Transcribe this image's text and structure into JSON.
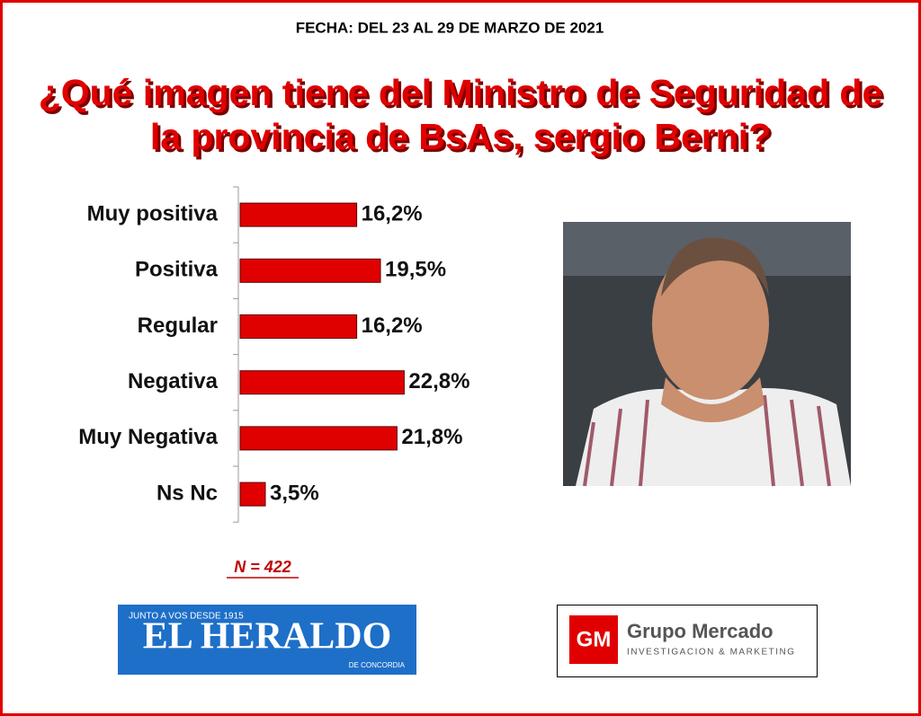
{
  "header": {
    "date": "FECHA: DEL 23 AL 29 DE MARZO DE 2021"
  },
  "chart_data": {
    "type": "bar",
    "orientation": "horizontal",
    "title": [
      "¿Qué imagen tiene del Ministro de Seguridad de",
      "la provincia de BsAs, sergio Berni?"
    ],
    "categories": [
      "Muy positiva",
      "Positiva",
      "Regular",
      "Negativa",
      "Muy Negativa",
      "Ns Nc"
    ],
    "values": [
      16.2,
      19.5,
      16.2,
      22.8,
      21.8,
      3.5
    ],
    "value_labels": [
      "16,2%",
      "19,5%",
      "16,2%",
      "22,8%",
      "21,8%",
      "3,5%"
    ],
    "color": "#e00000"
  },
  "note": "N = 422",
  "logos": {
    "heraldo": {
      "tagline": "JUNTO A VOS DESDE 1915",
      "name": "EL HERALDO",
      "city": "DE CONCORDIA"
    },
    "mercado": {
      "mark": "GM",
      "name": "Grupo Mercado",
      "tagline": "INVESTIGACION & MARKETING"
    }
  }
}
